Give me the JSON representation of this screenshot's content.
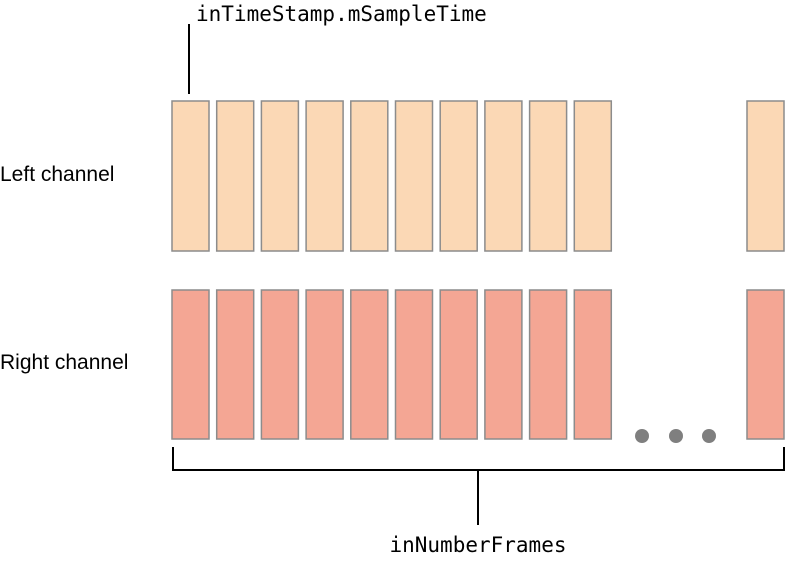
{
  "labels": {
    "timestamp": "inTimeStamp.mSampleTime",
    "left": "Left channel",
    "right": "Right channel",
    "frames": "inNumberFrames"
  }
}
